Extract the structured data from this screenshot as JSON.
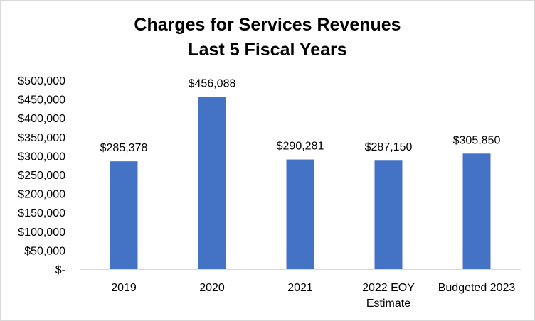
{
  "chart_data": {
    "type": "bar",
    "title_lines": [
      "Charges for Services Revenues",
      "Last 5 Fiscal Years"
    ],
    "categories": [
      [
        "2019"
      ],
      [
        "2020"
      ],
      [
        "2021"
      ],
      [
        "2022 EOY",
        "Estimate"
      ],
      [
        "Budgeted 2023"
      ]
    ],
    "values": [
      285378,
      456088,
      290281,
      287150,
      305850
    ],
    "value_labels": [
      "$285,378",
      "$456,088",
      "$290,281",
      "$287,150",
      "$305,850"
    ],
    "ylim": [
      0,
      500000
    ],
    "y_ticks": [
      0,
      50000,
      100000,
      150000,
      200000,
      250000,
      300000,
      350000,
      400000,
      450000,
      500000
    ],
    "y_tick_labels": [
      "$-",
      "$50,000",
      "$100,000",
      "$150,000",
      "$200,000",
      "$250,000",
      "$300,000",
      "$350,000",
      "$400,000",
      "$450,000",
      "$500,000"
    ],
    "bar_color": "#4472c4",
    "grid": false,
    "legend": "none"
  }
}
